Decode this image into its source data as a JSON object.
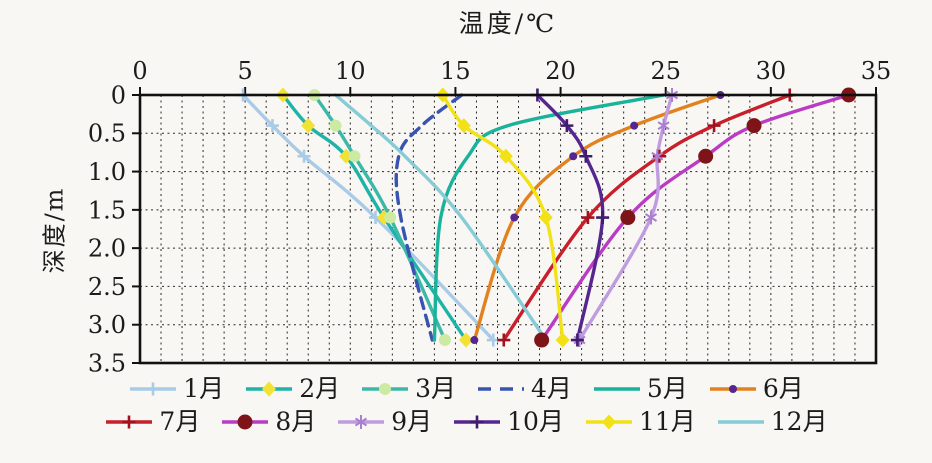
{
  "chart_data": {
    "type": "line",
    "title": "温度/℃",
    "xlabel": "温度/℃",
    "ylabel": "深度/m",
    "x_axis": {
      "title": "温度/℃",
      "min": 0,
      "max": 35,
      "tick_labels": [
        "0",
        "5",
        "10",
        "15",
        "20",
        "25",
        "30",
        "35"
      ],
      "tick_step": 5,
      "grid_step": 1,
      "position": "top"
    },
    "y_axis": {
      "label": "深度/m",
      "min": 0,
      "max": 3.5,
      "tick_labels": [
        "0",
        "0.5",
        "1.0",
        "1.5",
        "2.0",
        "2.5",
        "3.0",
        "3.5"
      ],
      "tick_step": 0.5,
      "grid_step": 0.5,
      "inverted": true
    },
    "grid": "dashed",
    "depths_m": [
      0,
      0.4,
      0.8,
      1.6,
      3.2
    ],
    "series": [
      {
        "name": "1月",
        "color": "#a8cbe8",
        "line_style": "solid",
        "marker": "plus",
        "marker_color": "#a8cbe8",
        "values": [
          4.9,
          6.3,
          7.8,
          11.2,
          16.8
        ]
      },
      {
        "name": "2月",
        "color": "#1fb3a8",
        "line_style": "solid",
        "marker": "diamond",
        "marker_color": "#f2e233",
        "values": [
          6.8,
          8.0,
          9.8,
          11.6,
          15.5
        ]
      },
      {
        "name": "3月",
        "color": "#3cb8a8",
        "line_style": "solid",
        "marker": "circle",
        "marker_color": "#cdeaa3",
        "values": [
          8.3,
          9.3,
          10.2,
          11.9,
          14.5
        ]
      },
      {
        "name": "4月",
        "color": "#3853b0",
        "line_style": "dashed",
        "marker": "none",
        "marker_color": "#3853b0",
        "values": [
          15.3,
          13.4,
          12.3,
          12.4,
          13.9
        ]
      },
      {
        "name": "5月",
        "color": "#18b39a",
        "line_style": "solid",
        "marker": "none",
        "marker_color": "#18b39a",
        "values": [
          24.9,
          17.5,
          15.6,
          14.3,
          14.0
        ]
      },
      {
        "name": "6月",
        "color": "#e2821e",
        "line_style": "solid",
        "marker": "dot",
        "marker_color": "#55268f",
        "values": [
          27.6,
          23.5,
          20.6,
          17.8,
          15.9
        ]
      },
      {
        "name": "7月",
        "color": "#c81f2a",
        "line_style": "solid",
        "marker": "plus",
        "marker_color": "#a01220",
        "values": [
          30.9,
          27.3,
          24.7,
          21.3,
          17.3
        ]
      },
      {
        "name": "8月",
        "color": "#bb3cc4",
        "line_style": "solid",
        "marker": "circle-big",
        "marker_color": "#7e1418",
        "values": [
          33.7,
          29.2,
          26.9,
          23.2,
          19.1
        ]
      },
      {
        "name": "9月",
        "color": "#bf9ce0",
        "line_style": "solid",
        "marker": "star",
        "marker_color": "#a97fd0",
        "values": [
          25.3,
          24.9,
          24.6,
          24.3,
          20.9
        ]
      },
      {
        "name": "10月",
        "color": "#55268f",
        "line_style": "solid",
        "marker": "plus",
        "marker_color": "#3f1c6e",
        "values": [
          18.9,
          20.3,
          21.2,
          22.0,
          20.8
        ]
      },
      {
        "name": "11月",
        "color": "#f2e117",
        "line_style": "solid",
        "marker": "diamond",
        "marker_color": "#f2e117",
        "values": [
          14.4,
          15.4,
          17.4,
          19.3,
          20.1
        ]
      },
      {
        "name": "12月",
        "color": "#85ccd6",
        "line_style": "solid",
        "marker": "none",
        "marker_color": "#85ccd6",
        "values": [
          9.3,
          11.0,
          12.6,
          15.3,
          19.3
        ]
      }
    ],
    "legend_position": "bottom",
    "legend_rows": 2
  }
}
